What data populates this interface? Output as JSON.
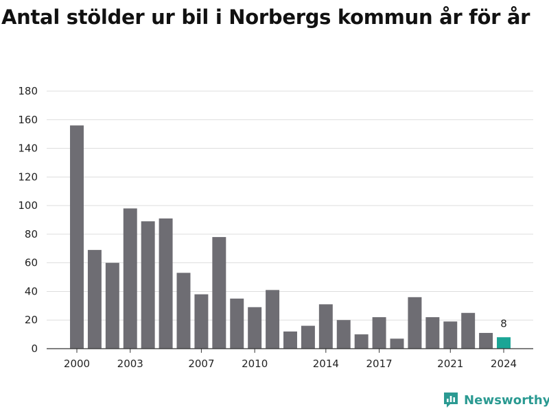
{
  "title": "Antal stölder ur bil i Norbergs kommun år för år",
  "brand": {
    "name": "Newsworthy",
    "icon": "newsworthy-logo-icon",
    "color": "#2b9a92"
  },
  "chart_data": {
    "type": "bar",
    "title": "Antal stölder ur bil i Norbergs kommun år för år",
    "xlabel": "",
    "ylabel": "",
    "ylim": [
      0,
      180
    ],
    "yticks": [
      0,
      20,
      40,
      60,
      80,
      100,
      120,
      140,
      160,
      180
    ],
    "grid": true,
    "legend": "none",
    "categories": [
      "2000",
      "2001",
      "2002",
      "2003",
      "2004",
      "2005",
      "2006",
      "2007",
      "2008",
      "2009",
      "2010",
      "2011",
      "2012",
      "2013",
      "2014",
      "2015",
      "2016",
      "2017",
      "2018",
      "2019",
      "2020",
      "2021",
      "2022",
      "2023",
      "2024"
    ],
    "xtick_labels": [
      "2000",
      "2003",
      "2007",
      "2010",
      "2014",
      "2017",
      "2021",
      "2024"
    ],
    "values": [
      156,
      69,
      60,
      98,
      89,
      91,
      53,
      38,
      78,
      35,
      29,
      41,
      12,
      16,
      31,
      20,
      10,
      22,
      7,
      36,
      22,
      19,
      25,
      11,
      8
    ],
    "bar_color": "#6e6d73",
    "highlight": {
      "category": "2024",
      "value": 8,
      "label": "8",
      "color": "#1aa595"
    }
  }
}
